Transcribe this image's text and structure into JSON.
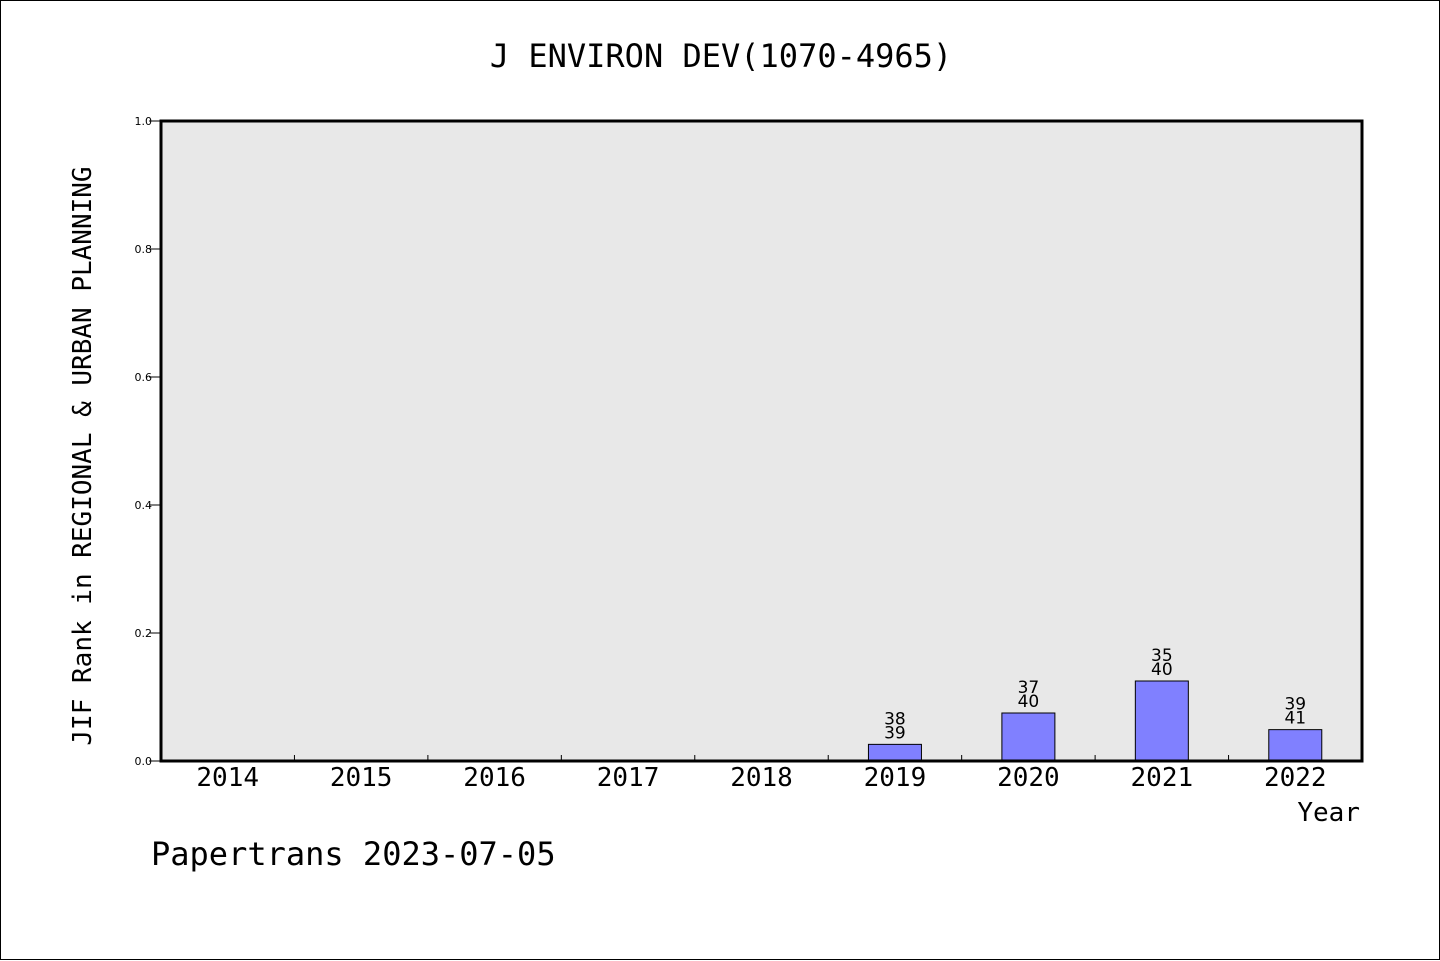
{
  "chart_data": {
    "type": "bar",
    "title": "J ENVIRON DEV(1070-4965)",
    "xlabel": "Year",
    "ylabel": "JIF Rank in REGIONAL & URBAN PLANNING",
    "categories": [
      "2014",
      "2015",
      "2016",
      "2017",
      "2018",
      "2019",
      "2020",
      "2021",
      "2022"
    ],
    "values": [
      null,
      null,
      null,
      null,
      null,
      0.026,
      0.075,
      0.125,
      0.049
    ],
    "rank": [
      null,
      null,
      null,
      null,
      null,
      "38",
      "37",
      "35",
      "39"
    ],
    "total": [
      null,
      null,
      null,
      null,
      null,
      "39",
      "40",
      "40",
      "41"
    ],
    "yticks": [
      "0.0",
      "0.2",
      "0.4",
      "0.6",
      "0.8",
      "1.0"
    ],
    "ylim": [
      0,
      1.0
    ],
    "grid": false,
    "legend": "none",
    "colors": {
      "bar": "#8080ff",
      "plot_bg": "#e8e8e8",
      "axis": "#000000"
    }
  },
  "footer": {
    "text": "Papertrans 2023-07-05"
  }
}
